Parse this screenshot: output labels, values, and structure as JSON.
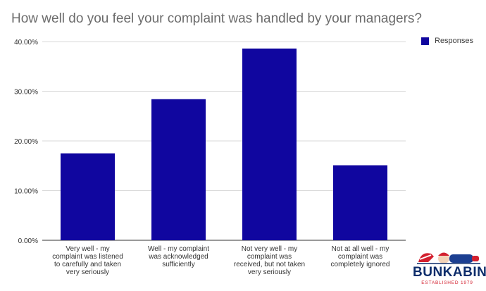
{
  "chart_data": {
    "type": "bar",
    "title": "How well do you feel your complaint was handled by your managers?",
    "xlabel": "",
    "ylabel": "",
    "categories": [
      [
        "Very well - my",
        "complaint was listened",
        "to carefully and taken",
        "very seriously"
      ],
      [
        "Well - my complaint",
        "was acknowledged",
        "sufficiently"
      ],
      [
        "Not very well - my",
        "complaint was",
        "received, but not taken",
        "very seriously"
      ],
      [
        "Not at all well - my",
        "complaint was",
        "completely ignored"
      ]
    ],
    "series": [
      {
        "name": "Responses",
        "values": [
          17.5,
          28.4,
          38.6,
          15.1
        ]
      }
    ],
    "ylim": [
      0,
      40
    ],
    "yticks": [
      "0.00%",
      "10.00%",
      "20.00%",
      "30.00%",
      "40.00%"
    ],
    "grid": true,
    "legend_position": "top-right",
    "bar_color": "#10069f",
    "grid_color": "#d9d9d9",
    "axis_color": "#333333"
  },
  "brand": {
    "name": "BUNKABIN",
    "tagline": "ESTABLISHED 1979",
    "primary_color": "#0d2d6b",
    "accent_color": "#d3202f"
  }
}
